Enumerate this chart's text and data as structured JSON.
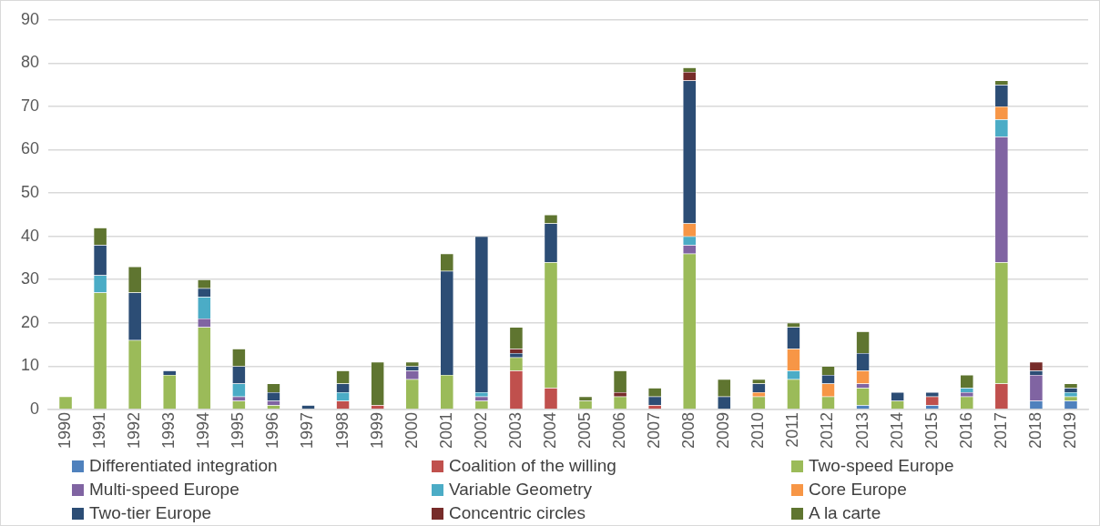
{
  "chart_data": {
    "type": "bar",
    "stacked": true,
    "categories": [
      "1990",
      "1991",
      "1992",
      "1993",
      "1994",
      "1995",
      "1996",
      "1997",
      "1998",
      "1999",
      "2000",
      "2001",
      "2002",
      "2003",
      "2004",
      "2005",
      "2006",
      "2007",
      "2008",
      "2009",
      "2010",
      "2011",
      "2012",
      "2013",
      "2014",
      "2015",
      "2016",
      "2017",
      "2018",
      "2019"
    ],
    "series": [
      {
        "name": "Differentiated integration",
        "color": "#4f81bd",
        "values": [
          0,
          0,
          0,
          0,
          0,
          0,
          0,
          0,
          0,
          0,
          0,
          0,
          0,
          0,
          0,
          0,
          0,
          0,
          0,
          0,
          0,
          0,
          0,
          1,
          0,
          1,
          0,
          0,
          2,
          2
        ]
      },
      {
        "name": "Coalition of the willing",
        "color": "#c0504d",
        "values": [
          0,
          0,
          0,
          0,
          0,
          0,
          0,
          0,
          2,
          1,
          0,
          0,
          0,
          9,
          5,
          0,
          0,
          1,
          0,
          0,
          0,
          0,
          0,
          0,
          0,
          2,
          0,
          6,
          0,
          0
        ]
      },
      {
        "name": "Two-speed Europe",
        "color": "#9bbb59",
        "values": [
          3,
          27,
          16,
          8,
          19,
          2,
          1,
          0,
          0,
          0,
          7,
          8,
          2,
          3,
          29,
          2,
          3,
          0,
          36,
          0,
          3,
          7,
          3,
          4,
          2,
          0,
          3,
          28,
          0,
          1
        ]
      },
      {
        "name": "Multi-speed Europe",
        "color": "#8064a2",
        "values": [
          0,
          0,
          0,
          0,
          2,
          1,
          1,
          0,
          0,
          0,
          2,
          0,
          1,
          0,
          0,
          0,
          0,
          0,
          2,
          0,
          0,
          0,
          0,
          1,
          0,
          0,
          1,
          29,
          6,
          0
        ]
      },
      {
        "name": "Variable Geometry",
        "color": "#4bacc6",
        "values": [
          0,
          4,
          0,
          0,
          5,
          3,
          0,
          0,
          2,
          0,
          0,
          0,
          1,
          0,
          0,
          0,
          0,
          0,
          2,
          0,
          0,
          2,
          0,
          0,
          0,
          0,
          1,
          4,
          0,
          1
        ]
      },
      {
        "name": "Core Europe",
        "color": "#f79646",
        "values": [
          0,
          0,
          0,
          0,
          0,
          0,
          0,
          0,
          0,
          0,
          0,
          0,
          0,
          0,
          0,
          0,
          0,
          0,
          3,
          0,
          1,
          5,
          3,
          3,
          0,
          0,
          0,
          3,
          0,
          0
        ]
      },
      {
        "name": "Two-tier Europe",
        "color": "#2c4d75",
        "values": [
          0,
          7,
          11,
          1,
          2,
          4,
          2,
          1,
          2,
          0,
          1,
          24,
          36,
          1,
          9,
          0,
          0,
          2,
          33,
          3,
          2,
          5,
          2,
          4,
          2,
          1,
          0,
          5,
          1,
          1
        ]
      },
      {
        "name": "Concentric circles",
        "color": "#772c2a",
        "values": [
          0,
          0,
          0,
          0,
          0,
          0,
          0,
          0,
          0,
          0,
          0,
          0,
          0,
          1,
          0,
          0,
          1,
          0,
          2,
          0,
          0,
          0,
          0,
          0,
          0,
          0,
          0,
          0,
          2,
          0
        ]
      },
      {
        "name": "A la carte",
        "color": "#5f7530",
        "values": [
          0,
          4,
          6,
          0,
          2,
          4,
          2,
          0,
          3,
          10,
          1,
          4,
          0,
          5,
          2,
          1,
          5,
          2,
          1,
          4,
          1,
          1,
          2,
          5,
          0,
          0,
          3,
          1,
          0,
          1
        ]
      }
    ],
    "ylim": [
      0,
      90
    ],
    "yticks": [
      0,
      10,
      20,
      30,
      40,
      50,
      60,
      70,
      80,
      90
    ],
    "grid": "y",
    "legend": "bottom"
  }
}
